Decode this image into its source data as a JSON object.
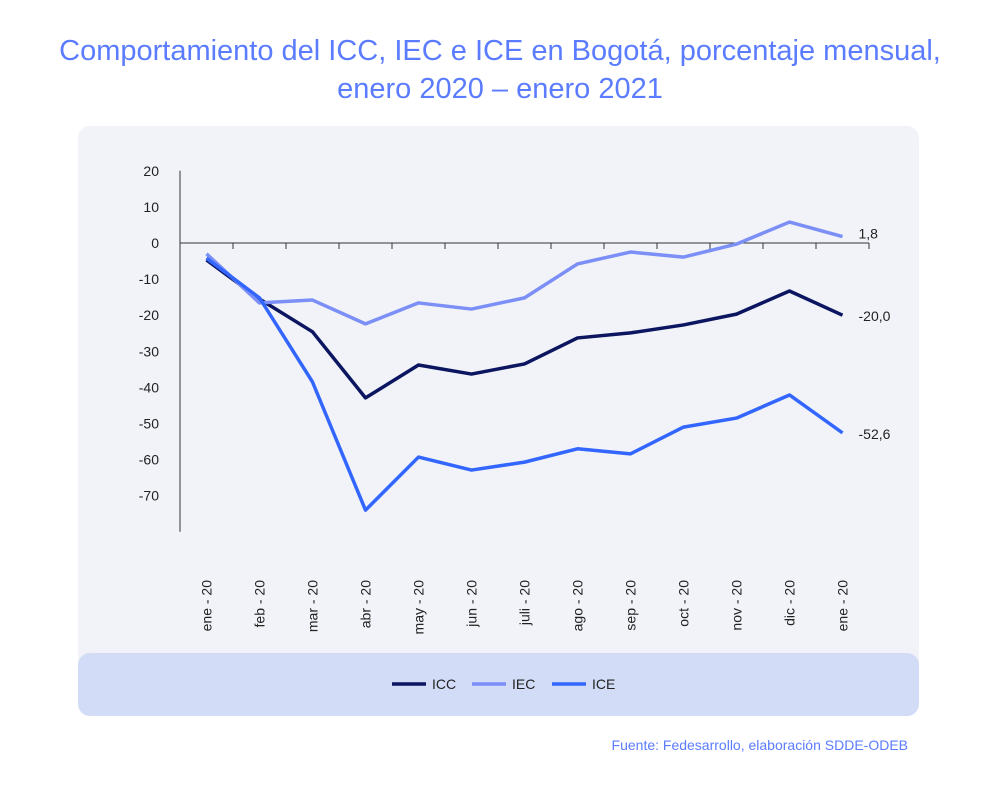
{
  "title_line1": "Comportamiento del ICC, IEC e ICE en Bogotá, porcentaje mensual,",
  "title_line2": "enero 2020 – enero 2021",
  "source": "Fuente: Fedesarrollo, elaboración SDDE-ODEB",
  "chart_data": {
    "type": "line",
    "title": "Comportamiento del ICC, IEC e ICE en Bogotá, porcentaje mensual, enero 2020 – enero 2021",
    "categories": [
      "ene - 20",
      "feb - 20",
      "mar - 20",
      "abr - 20",
      "may - 20",
      "jun - 20",
      "juli - 20",
      "ago - 20",
      "sep - 20",
      "oct - 20",
      "nov - 20",
      "dic - 20",
      "ene - 20"
    ],
    "yticks": [
      20,
      10,
      0,
      -10,
      -20,
      -30,
      -40,
      -50,
      -60,
      -70
    ],
    "ylim": [
      -80,
      20
    ],
    "legend_position": "bottom",
    "series": [
      {
        "name": "ICC",
        "color": "#0b1560",
        "values": [
          -4.7,
          -15.5,
          -24.6,
          -42.9,
          -33.8,
          -36.3,
          -33.5,
          -26.3,
          -24.9,
          -22.7,
          -19.7,
          -13.3,
          -20.0
        ],
        "end_label": "-20,0"
      },
      {
        "name": "IEC",
        "color": "#7b8ff7",
        "values": [
          -3.0,
          -16.6,
          -15.8,
          -22.4,
          -16.6,
          -18.3,
          -15.2,
          -5.8,
          -2.5,
          -3.9,
          -0.3,
          5.8,
          1.8
        ],
        "end_label": "1,8"
      },
      {
        "name": "ICE",
        "color": "#3366ff",
        "values": [
          -4.2,
          -15.2,
          -38.5,
          -74.0,
          -59.3,
          -62.9,
          -60.7,
          -57.0,
          -58.4,
          -51.0,
          -48.5,
          -42.1,
          -52.6
        ],
        "end_label": "-52,6"
      }
    ]
  }
}
